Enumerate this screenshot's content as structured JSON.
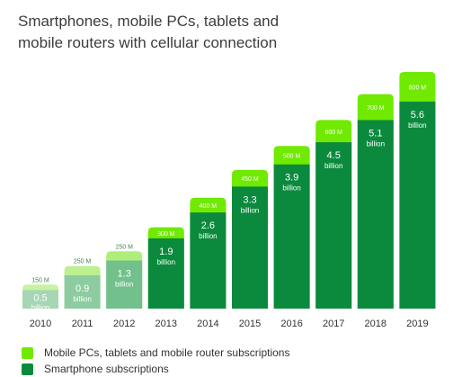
{
  "title_lines": [
    "Smartphones, mobile PCs, tablets and",
    "mobile routers with cellular connection"
  ],
  "chart_data": {
    "type": "bar",
    "stacked": true,
    "categories": [
      "2010",
      "2011",
      "2012",
      "2013",
      "2014",
      "2015",
      "2016",
      "2017",
      "2018",
      "2019"
    ],
    "series": [
      {
        "name": "Smartphone subscriptions",
        "values": [
          0.5,
          0.9,
          1.3,
          1.9,
          2.6,
          3.3,
          3.9,
          4.5,
          5.1,
          5.6
        ],
        "value_labels": [
          "0.5",
          "0.9",
          "1.3",
          "1.9",
          "2.6",
          "3.3",
          "3.9",
          "4.5",
          "5.1",
          "5.6"
        ],
        "unit_label": "billion",
        "color": "#0b8a3e",
        "faded_colors": [
          "#a6d6b3",
          "#8ccca0",
          "#72c08c"
        ]
      },
      {
        "name": "Mobile PCs, tablets and mobile router subscriptions",
        "values": [
          0.15,
          0.25,
          0.25,
          0.3,
          0.4,
          0.45,
          0.5,
          0.6,
          0.7,
          0.8
        ],
        "value_labels": [
          "150 M",
          "250 M",
          "250 M",
          "300 M",
          "400 M",
          "450 M",
          "500 M",
          "600 M",
          "700 M",
          "800 M"
        ],
        "color": "#6fea00",
        "faded_colors": [
          "#c7f3a2",
          "#bdf08f",
          "#b0ee7c"
        ]
      }
    ],
    "xlabel": "",
    "ylabel": "",
    "ylim": [
      0,
      6.4
    ],
    "grid": false,
    "legend_position": "bottom-left"
  },
  "legend": [
    {
      "label": "Mobile PCs, tablets and mobile router subscriptions",
      "color": "#6fea00"
    },
    {
      "label": "Smartphone subscriptions",
      "color": "#0b8a3e"
    }
  ]
}
